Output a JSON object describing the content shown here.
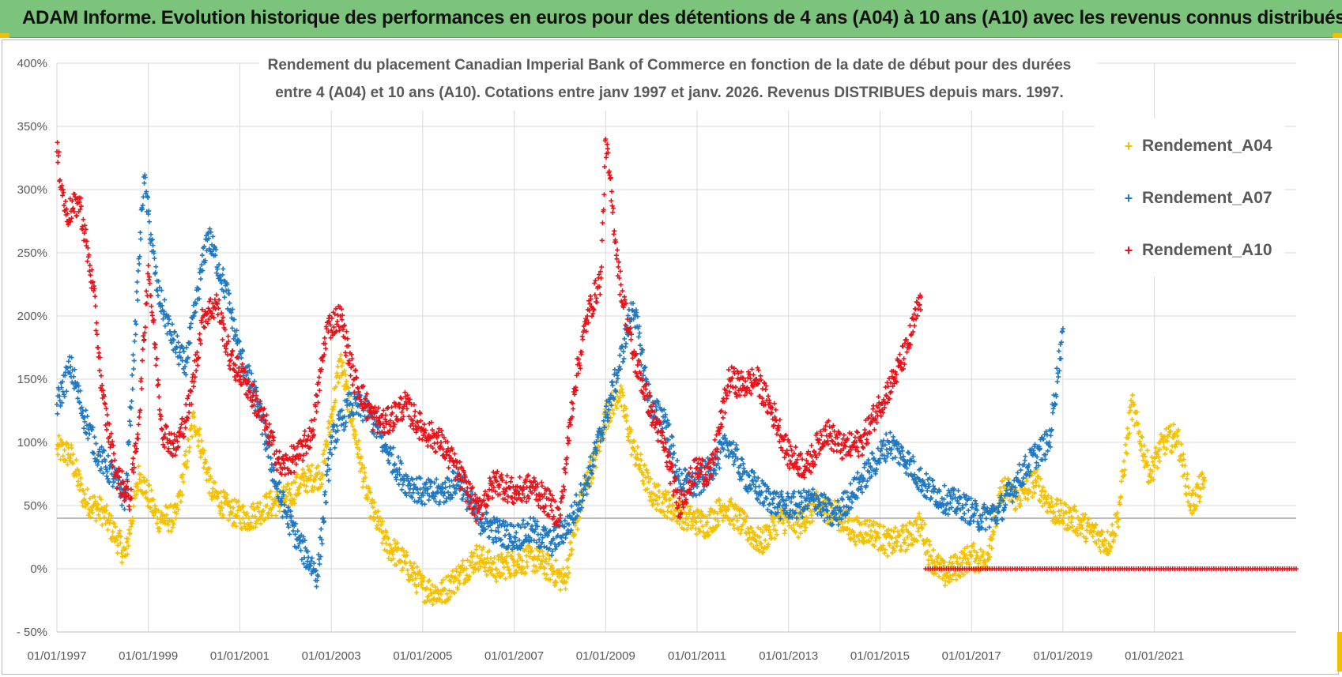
{
  "header": {
    "title": "ADAM Informe. Evolution historique des performances en euros pour des détentions de 4 ans (A04) à 10 ans (A10) avec les revenus connus distribués",
    "background_color": "#7cc47b"
  },
  "chart_data": {
    "type": "scatter",
    "title_line1": "Rendement du placement Canadian Imperial Bank of Commerce en fonction de la date de début pour des durées",
    "title_line2": "entre 4 (A04) et 10 ans (A10).  Cotations entre janv 1997 et janv. 2026. Revenus DISTRIBUES depuis mars. 1997.",
    "xlabel": "",
    "ylabel": "",
    "xlim": [
      1997.0,
      2024.1
    ],
    "ylim": [
      -50,
      400
    ],
    "grid": true,
    "reference_line": 40,
    "legend_position": "top-right",
    "x_ticks": [
      "01/01/1997",
      "01/01/1999",
      "01/01/2001",
      "01/01/2003",
      "01/01/2005",
      "01/01/2007",
      "01/01/2009",
      "01/01/2011",
      "01/01/2013",
      "01/01/2015",
      "01/01/2017",
      "01/01/2019",
      "01/01/2021"
    ],
    "x_tick_years": [
      1997,
      1999,
      2001,
      2003,
      2005,
      2007,
      2009,
      2011,
      2013,
      2015,
      2017,
      2019,
      2021
    ],
    "y_ticks": [
      "- 50%",
      "0%",
      "50%",
      "100%",
      "150%",
      "200%",
      "250%",
      "300%",
      "350%",
      "400%"
    ],
    "y_tick_values": [
      -50,
      0,
      50,
      100,
      150,
      200,
      250,
      300,
      350,
      400
    ],
    "series": [
      {
        "name": "Rendement_A04",
        "color": "#f5c000",
        "x": [
          1997.0,
          1997.3,
          1997.6,
          1998.0,
          1998.3,
          1998.5,
          1998.8,
          1999.2,
          1999.6,
          2000.0,
          2000.4,
          2000.8,
          2001.2,
          2001.6,
          2002.0,
          2002.4,
          2002.8,
          2003.0,
          2003.2,
          2003.5,
          2003.8,
          2004.2,
          2004.6,
          2005.0,
          2005.4,
          2005.8,
          2006.2,
          2006.6,
          2007.0,
          2007.4,
          2007.8,
          2008.1,
          2008.5,
          2008.8,
          2009.0,
          2009.3,
          2009.6,
          2010.0,
          2010.4,
          2010.8,
          2011.2,
          2011.6,
          2012.0,
          2012.4,
          2012.8,
          2013.2,
          2013.6,
          2014.0,
          2014.4,
          2014.8,
          2015.2,
          2015.6,
          2015.9,
          2016.1,
          2016.4,
          2016.8,
          2017.0,
          2017.3,
          2017.7,
          2018.0,
          2018.4,
          2018.8,
          2019.2,
          2019.6,
          2020.0,
          2020.2,
          2020.5,
          2020.9,
          2021.2,
          2021.5,
          2021.8,
          2022.1
        ],
        "values": [
          95,
          90,
          55,
          45,
          25,
          10,
          75,
          40,
          40,
          120,
          60,
          45,
          40,
          50,
          55,
          70,
          75,
          120,
          165,
          110,
          55,
          20,
          5,
          -15,
          -20,
          -5,
          10,
          0,
          5,
          8,
          0,
          -10,
          60,
          90,
          120,
          140,
          95,
          60,
          50,
          40,
          35,
          50,
          35,
          20,
          40,
          35,
          50,
          45,
          30,
          30,
          20,
          25,
          35,
          10,
          -5,
          5,
          10,
          5,
          65,
          55,
          70,
          45,
          40,
          30,
          20,
          40,
          130,
          75,
          100,
          105,
          50,
          70
        ]
      },
      {
        "name": "Rendement_A07",
        "color": "#1f78c1",
        "x": [
          1997.0,
          1997.3,
          1997.6,
          1997.9,
          1998.2,
          1998.5,
          1998.7,
          1998.9,
          1999.2,
          1999.5,
          1999.8,
          2000.0,
          2000.3,
          2000.7,
          2001.0,
          2001.4,
          2001.8,
          2002.0,
          2002.3,
          2002.7,
          2003.0,
          2003.4,
          2003.8,
          2004.2,
          2004.6,
          2005.0,
          2005.4,
          2005.8,
          2006.2,
          2006.6,
          2007.0,
          2007.4,
          2007.8,
          2008.2,
          2008.6,
          2009.0,
          2009.3,
          2009.6,
          2010.0,
          2010.3,
          2010.6,
          2011.0,
          2011.3,
          2011.7,
          2012.0,
          2012.4,
          2012.8,
          2013.2,
          2013.6,
          2014.0,
          2014.4,
          2014.8,
          2015.2,
          2015.6,
          2016.0,
          2016.4,
          2016.8,
          2017.2,
          2017.6,
          2018.0,
          2018.4,
          2018.7,
          2019.0
        ],
        "values": [
          130,
          160,
          120,
          90,
          75,
          55,
          180,
          310,
          220,
          185,
          160,
          200,
          265,
          220,
          170,
          130,
          65,
          45,
          20,
          -5,
          100,
          130,
          125,
          95,
          70,
          60,
          60,
          70,
          40,
          30,
          25,
          30,
          20,
          35,
          70,
          120,
          160,
          210,
          125,
          120,
          70,
          65,
          80,
          100,
          75,
          60,
          50,
          50,
          55,
          40,
          60,
          80,
          100,
          85,
          65,
          55,
          50,
          40,
          45,
          70,
          90,
          100,
          190
        ]
      },
      {
        "name": "Rendement_A10",
        "color": "#e8131a",
        "x": [
          1997.0,
          1997.2,
          1997.5,
          1997.8,
          1998.0,
          1998.3,
          1998.6,
          1998.8,
          1999.0,
          1999.3,
          1999.6,
          1999.9,
          2000.2,
          2000.5,
          2000.8,
          2001.1,
          2001.5,
          2001.9,
          2002.3,
          2002.6,
          2002.9,
          2003.2,
          2003.5,
          2003.9,
          2004.2,
          2004.6,
          2005.0,
          2005.4,
          2005.8,
          2006.2,
          2006.6,
          2007.0,
          2007.4,
          2007.8,
          2008.0,
          2008.3,
          2008.6,
          2008.9,
          2009.0,
          2009.3,
          2009.6,
          2010.0,
          2010.3,
          2010.6,
          2011.0,
          2011.3,
          2011.7,
          2012.0,
          2012.3,
          2012.7,
          2013.0,
          2013.4,
          2013.8,
          2014.2,
          2014.6,
          2015.0,
          2015.3,
          2015.6,
          2015.9
        ],
        "values": [
          330,
          280,
          290,
          220,
          135,
          75,
          55,
          120,
          240,
          110,
          95,
          130,
          200,
          210,
          165,
          150,
          120,
          80,
          90,
          110,
          190,
          200,
          150,
          120,
          115,
          130,
          110,
          100,
          75,
          45,
          70,
          60,
          65,
          50,
          40,
          140,
          200,
          230,
          340,
          230,
          170,
          125,
          95,
          50,
          80,
          75,
          150,
          145,
          150,
          120,
          90,
          80,
          110,
          95,
          100,
          130,
          150,
          175,
          215
        ]
      }
    ],
    "zero_series": {
      "name": "Rendement_A10 (zéro)",
      "color": "#e8131a",
      "x_start": 2016.0,
      "x_end": 2024.1,
      "value": 0
    }
  }
}
